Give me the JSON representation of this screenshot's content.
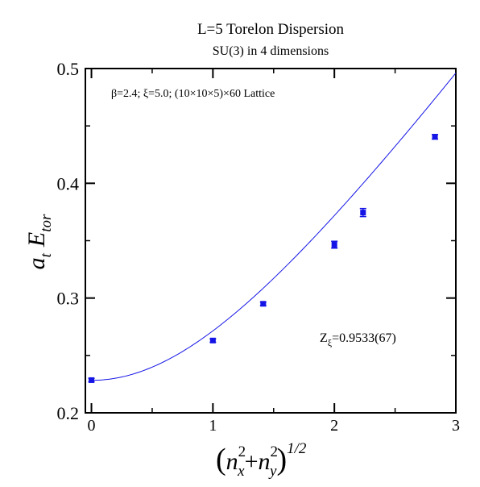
{
  "chart_data": {
    "type": "scatter",
    "title": "L=5 Torelon Dispersion",
    "subtitle": "SU(3) in 4 dimensions",
    "annotation_top": "β=2.4;  ξ=5.0; (10×10×5)×60 Lattice",
    "annotation_fit": {
      "symbol": "Z",
      "sub": "ξ",
      "value": "=0.9533(67)"
    },
    "ylabel": {
      "a": "a",
      "a_sub": "t",
      "E": "E",
      "E_sub": "tor"
    },
    "xlabel": {
      "open": "(",
      "n1": "n",
      "n1_sub": "x",
      "n1_sup": "2",
      "plus": "+",
      "n2": "n",
      "n2_sub": "y",
      "n2_sup": "2",
      "close": ")",
      "exp": "1/2"
    },
    "xlim": [
      -0.05,
      3.0
    ],
    "ylim": [
      0.2,
      0.5
    ],
    "xticks": [
      {
        "value": 0,
        "label": "0"
      },
      {
        "value": 1,
        "label": "1"
      },
      {
        "value": 2,
        "label": "2"
      },
      {
        "value": 3,
        "label": "3"
      }
    ],
    "yticks": [
      {
        "value": 0.2,
        "label": "0.2"
      },
      {
        "value": 0.3,
        "label": "0.3"
      },
      {
        "value": 0.4,
        "label": "0.4"
      },
      {
        "value": 0.5,
        "label": "0.5"
      }
    ],
    "points": [
      {
        "x": 0.0,
        "y": 0.2285,
        "err": 0.0015
      },
      {
        "x": 1.0,
        "y": 0.263,
        "err": 0.0015
      },
      {
        "x": 1.414,
        "y": 0.295,
        "err": 0.0015
      },
      {
        "x": 2.0,
        "y": 0.3465,
        "err": 0.003
      },
      {
        "x": 2.236,
        "y": 0.3745,
        "err": 0.0035
      },
      {
        "x": 2.828,
        "y": 0.4405,
        "err": 0.002
      }
    ],
    "fit": {
      "type": "dispersion",
      "a0": 0.2283,
      "kappa": 0.1468,
      "x_max": 3.0
    },
    "colors": {
      "points": "#1414e6",
      "fit": "#1414e6",
      "axes": "#000000"
    },
    "grid": false,
    "legend": "none"
  }
}
